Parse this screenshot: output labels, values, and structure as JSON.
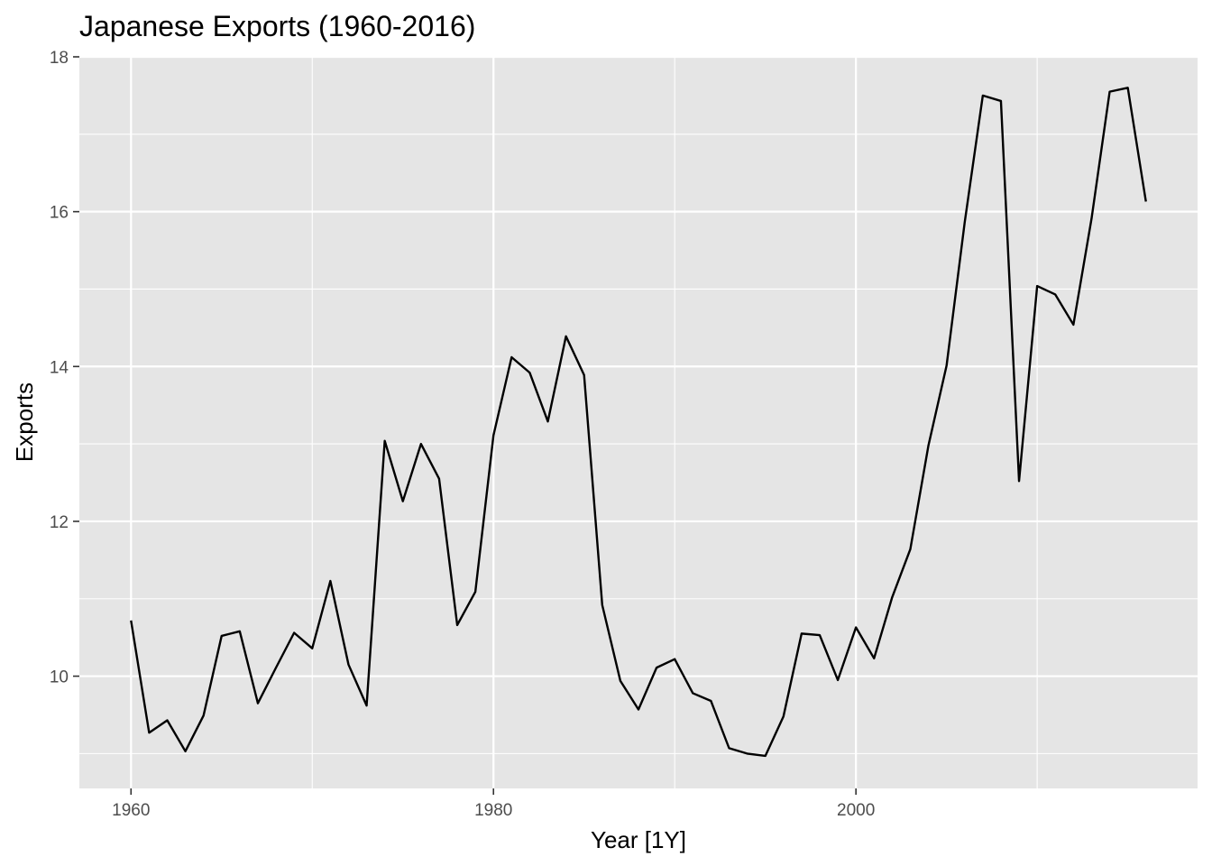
{
  "chart_data": {
    "type": "line",
    "title": "Japanese Exports (1960-2016)",
    "xlabel": "Year [1Y]",
    "ylabel": "Exports",
    "xlim": [
      1957.15,
      2018.85
    ],
    "ylim": [
      8.55,
      18.0
    ],
    "x_ticks": [
      1960,
      1980,
      2000
    ],
    "x_minor_ticks": [
      1970,
      1990,
      2010
    ],
    "y_ticks": [
      10,
      12,
      14,
      16,
      18
    ],
    "y_minor_ticks": [
      9,
      11,
      13,
      15,
      17
    ],
    "grid": true,
    "legend": "none",
    "colors": {
      "panel": "#e5e5e5",
      "grid": "#ffffff",
      "line": "#000000"
    },
    "series": [
      {
        "x": [
          1960,
          1961,
          1962,
          1963,
          1964,
          1965,
          1966,
          1967,
          1968,
          1969,
          1970,
          1971,
          1972,
          1973,
          1974,
          1975,
          1976,
          1977,
          1978,
          1979,
          1980,
          1981,
          1982,
          1983,
          1984,
          1985,
          1986,
          1987,
          1988,
          1989,
          1990,
          1991,
          1992,
          1993,
          1994,
          1995,
          1996,
          1997,
          1998,
          1999,
          2000,
          2001,
          2002,
          2003,
          2004,
          2005,
          2006,
          2007,
          2008,
          2009,
          2010,
          2011,
          2012,
          2013,
          2014,
          2015,
          2016
        ],
        "values": [
          10.72,
          9.27,
          9.43,
          9.03,
          9.49,
          10.52,
          10.58,
          9.65,
          10.11,
          10.56,
          10.36,
          11.23,
          10.15,
          9.62,
          13.04,
          12.26,
          13.0,
          12.55,
          10.66,
          11.09,
          13.11,
          14.12,
          13.92,
          13.29,
          14.39,
          13.89,
          10.92,
          9.94,
          9.57,
          10.11,
          10.22,
          9.78,
          9.68,
          9.07,
          9.0,
          8.97,
          9.48,
          10.55,
          10.53,
          9.95,
          10.63,
          10.23,
          11.02,
          11.64,
          12.98,
          14.01,
          15.86,
          17.5,
          17.43,
          12.52,
          15.04,
          14.93,
          14.54,
          15.91,
          17.55,
          17.6,
          16.13
        ]
      }
    ]
  }
}
